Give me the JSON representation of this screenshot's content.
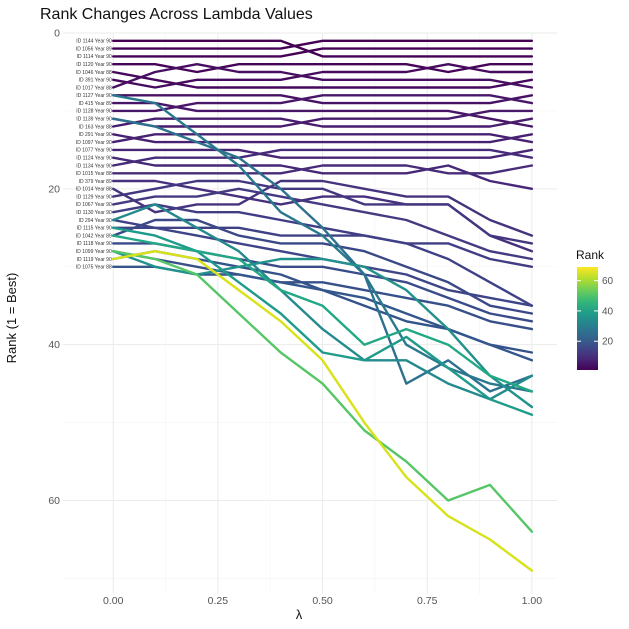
{
  "chart_data": {
    "type": "line",
    "title": "Rank Changes Across Lambda Values",
    "xlabel": "λ",
    "ylabel": "Rank (1 = Best)",
    "xlim": [
      -0.12,
      1.06
    ],
    "ylim": [
      0,
      72
    ],
    "y_reversed": true,
    "x_ticks": [
      "0.00",
      "0.25",
      "0.50",
      "0.75",
      "1.00"
    ],
    "y_ticks": [
      "0",
      "20",
      "40",
      "60"
    ],
    "grid": true,
    "x": [
      0,
      0.1,
      0.2,
      0.3,
      0.4,
      0.5,
      0.6,
      0.7,
      0.8,
      0.9,
      1.0
    ],
    "row_labels": [
      "ID 1144 Year 90",
      "ID 1056 Year 89",
      "ID 1114 Year 90",
      "ID 1120 Year 90",
      "ID 1046 Year 88",
      "ID 391 Year 90",
      "ID 1017 Year 88",
      "ID 1127 Year 90",
      "ID 415 Year 89",
      "ID 1128 Year 90",
      "ID 1139 Year 90",
      "ID 163 Year 88",
      "ID 291 Year 90",
      "ID 1097 Year 90",
      "ID 1077 Year 90",
      "ID 1124 Year 90",
      "ID 1134 Year 90",
      "ID 1015 Year 88",
      "ID 379 Year 89",
      "ID 1014 Year 88",
      "ID 1129 Year 90",
      "ID 1067 Year 90",
      "ID 1130 Year 90",
      "ID 294 Year 90",
      "ID 1115 Year 90",
      "ID 1042 Year 89",
      "ID 1118 Year 90",
      "ID 1099 Year 90",
      "ID 1119 Year 90",
      "ID 1075 Year 88"
    ],
    "series": [
      {
        "values": [
          1,
          1,
          1,
          1,
          1,
          3,
          3,
          3,
          3,
          3,
          3
        ],
        "color": "#440154"
      },
      {
        "values": [
          2,
          2,
          2,
          2,
          2,
          1,
          1,
          1,
          1,
          1,
          1
        ],
        "color": "#440154"
      },
      {
        "values": [
          3,
          3,
          3,
          3,
          3,
          2,
          2,
          2,
          2,
          2,
          2
        ],
        "color": "#440154"
      },
      {
        "values": [
          4,
          4,
          5,
          4,
          4,
          4,
          4,
          4,
          5,
          4,
          4
        ],
        "color": "#450457"
      },
      {
        "values": [
          5,
          6,
          7,
          7,
          7,
          7,
          7,
          7,
          7,
          7,
          6
        ],
        "color": "#46085c"
      },
      {
        "values": [
          6,
          7,
          6,
          6,
          6,
          5,
          5,
          5,
          4,
          5,
          5
        ],
        "color": "#460b5e"
      },
      {
        "values": [
          7,
          5,
          4,
          5,
          5,
          6,
          6,
          6,
          6,
          6,
          7
        ],
        "color": "#470e61"
      },
      {
        "values": [
          8,
          8,
          8,
          8,
          8,
          9,
          9,
          9,
          9,
          9,
          8
        ],
        "color": "#471164"
      },
      {
        "values": [
          9,
          9,
          10,
          10,
          10,
          10,
          10,
          10,
          10,
          11,
          12
        ],
        "color": "#481467"
      },
      {
        "values": [
          10,
          10,
          9,
          9,
          9,
          8,
          8,
          8,
          8,
          8,
          9
        ],
        "color": "#481769"
      },
      {
        "values": [
          11,
          12,
          12,
          12,
          12,
          11,
          11,
          11,
          11,
          10,
          10
        ],
        "color": "#481a6c"
      },
      {
        "values": [
          12,
          11,
          11,
          11,
          11,
          12,
          12,
          12,
          12,
          12,
          11
        ],
        "color": "#481c6e"
      },
      {
        "values": [
          13,
          14,
          14,
          14,
          14,
          14,
          14,
          14,
          14,
          14,
          13
        ],
        "color": "#482071"
      },
      {
        "values": [
          14,
          13,
          13,
          13,
          13,
          13,
          13,
          13,
          13,
          13,
          14
        ],
        "color": "#482173"
      },
      {
        "values": [
          15,
          15,
          15,
          15,
          16,
          16,
          16,
          16,
          16,
          16,
          15
        ],
        "color": "#482475"
      },
      {
        "values": [
          16,
          17,
          17,
          17,
          17,
          18,
          18,
          18,
          17,
          19,
          20
        ],
        "color": "#472777"
      },
      {
        "values": [
          17,
          16,
          16,
          16,
          15,
          15,
          15,
          15,
          15,
          15,
          16
        ],
        "color": "#472a7a"
      },
      {
        "values": [
          18,
          18,
          18,
          18,
          18,
          17,
          17,
          17,
          18,
          18,
          17
        ],
        "color": "#472c7a"
      },
      {
        "values": [
          19,
          19,
          20,
          21,
          22,
          21,
          21,
          22,
          22,
          26,
          28
        ],
        "color": "#462f7d"
      },
      {
        "values": [
          20,
          23,
          22,
          22,
          19,
          19,
          20,
          21,
          21,
          24,
          26
        ],
        "color": "#45337e"
      },
      {
        "values": [
          21,
          20,
          19,
          19,
          20,
          20,
          22,
          22,
          22,
          26,
          27
        ],
        "color": "#443680"
      },
      {
        "values": [
          22,
          21,
          21,
          20,
          21,
          22,
          23,
          24,
          26,
          28,
          29
        ],
        "color": "#433a82"
      },
      {
        "values": [
          23,
          22,
          23,
          23,
          24,
          25,
          26,
          27,
          27,
          29,
          30
        ],
        "color": "#413d84"
      },
      {
        "values": [
          24,
          25,
          25,
          25,
          26,
          26,
          26,
          27,
          29,
          32,
          35
        ],
        "color": "#3f4086"
      },
      {
        "values": [
          25,
          25,
          26,
          27,
          28,
          29,
          30,
          31,
          33,
          34,
          35
        ],
        "color": "#3d4487"
      },
      {
        "values": [
          26,
          24,
          24,
          26,
          27,
          27,
          28,
          30,
          32,
          35,
          36
        ],
        "color": "#3b4888"
      },
      {
        "values": [
          27,
          27,
          28,
          29,
          30,
          30,
          31,
          32,
          34,
          36,
          37
        ],
        "color": "#394b89"
      },
      {
        "values": [
          28,
          29,
          30,
          31,
          32,
          32,
          33,
          34,
          35,
          37,
          38
        ],
        "color": "#37508a"
      },
      {
        "values": [
          29,
          28,
          29,
          30,
          31,
          33,
          35,
          37,
          38,
          40,
          41
        ],
        "color": "#35538b"
      },
      {
        "values": [
          30,
          30,
          31,
          31,
          32,
          33,
          34,
          36,
          38,
          40,
          42
        ],
        "color": "#33578c"
      },
      {
        "values": [
          8,
          9,
          13,
          17,
          23,
          26,
          31,
          40,
          43,
          45,
          46
        ],
        "color": "#2a788e"
      },
      {
        "values": [
          11,
          12,
          14,
          16,
          20,
          25,
          31,
          45,
          42,
          46,
          44
        ],
        "color": "#2c728e"
      },
      {
        "values": [
          24,
          22,
          25,
          28,
          33,
          38,
          42,
          42,
          45,
          47,
          44
        ],
        "color": "#238a8d"
      },
      {
        "values": [
          28,
          30,
          31,
          30,
          29,
          29,
          30,
          33,
          38,
          44,
          48
        ],
        "color": "#21918c"
      },
      {
        "values": [
          25,
          26,
          28,
          32,
          36,
          41,
          42,
          39,
          43,
          47,
          49
        ],
        "color": "#1e9b8a"
      },
      {
        "values": [
          26,
          27,
          28,
          29,
          33,
          35,
          40,
          38,
          40,
          44,
          46
        ],
        "color": "#22a884"
      },
      {
        "values": [
          28,
          29,
          31,
          36,
          41,
          45,
          51,
          55,
          60,
          58,
          64
        ],
        "color": "#56c667"
      },
      {
        "values": [
          29,
          28,
          29,
          33,
          37,
          42,
          50,
          57,
          62,
          65,
          69
        ],
        "color": "#d8e219"
      }
    ],
    "legend": {
      "title": "Rank",
      "ticks": [
        "20",
        "40",
        "60"
      ],
      "colors": [
        "#440154",
        "#482878",
        "#3e4a89",
        "#31688e",
        "#26828e",
        "#1f9e89",
        "#35b779",
        "#6ece58",
        "#b5de2b",
        "#fde725"
      ],
      "range": [
        1,
        69
      ],
      "tick_values": [
        20,
        40,
        60
      ],
      "placement": "right"
    }
  }
}
